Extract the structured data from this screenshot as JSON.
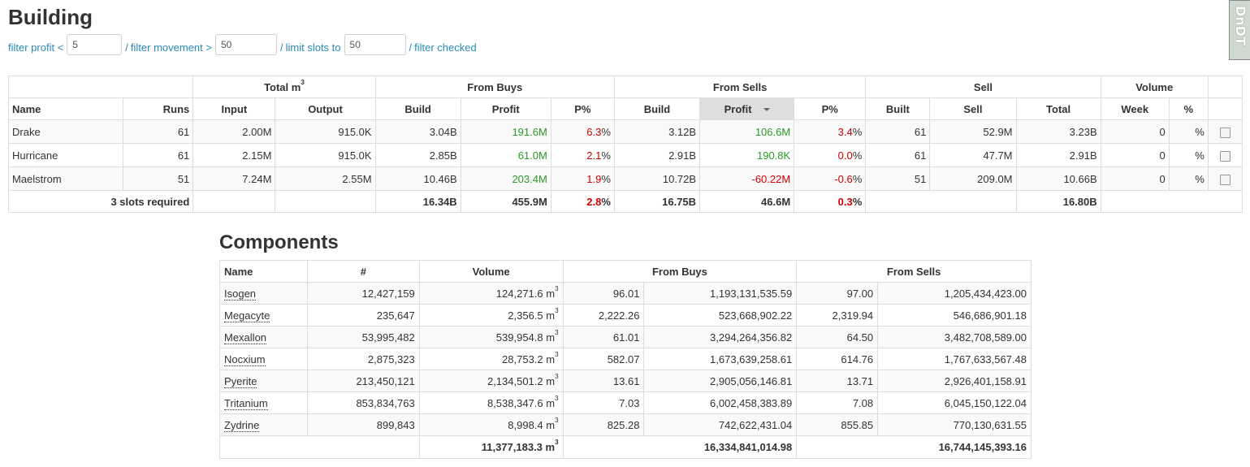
{
  "building": {
    "title": "Building",
    "filters": {
      "profit_label": "filter profit <",
      "profit_value": "5",
      "movement_label": "filter movement >",
      "movement_value": "50",
      "slots_label": "limit slots to",
      "slots_value": "50",
      "checked_label": "filter checked",
      "separator": "/"
    },
    "group_headers": {
      "total_m3": "Total m",
      "total_m3_sup": "3",
      "from_buys": "From Buys",
      "from_sells": "From Sells",
      "sell": "Sell",
      "volume": "Volume"
    },
    "columns": {
      "name": "Name",
      "runs": "Runs",
      "input": "Input",
      "output": "Output",
      "buys_build": "Build",
      "buys_profit": "Profit",
      "buys_pct": "P%",
      "sells_build": "Build",
      "sells_profit": "Profit",
      "sells_pct": "P%",
      "built": "Built",
      "sell": "Sell",
      "total": "Total",
      "week": "Week",
      "vol_pct": "%"
    },
    "rows": [
      {
        "name": "Drake",
        "runs": "61",
        "input": "2.00M",
        "output": "915.0K",
        "buys_build": "3.04B",
        "buys_profit": "191.6M",
        "buys_pct": "6.3",
        "sells_build": "3.12B",
        "sells_profit": "106.6M",
        "sells_pct": "3.4",
        "built": "61",
        "sell": "52.9M",
        "total": "3.23B",
        "week": "0",
        "vol_pct": "%"
      },
      {
        "name": "Hurricane",
        "runs": "61",
        "input": "2.15M",
        "output": "915.0K",
        "buys_build": "2.85B",
        "buys_profit": "61.0M",
        "buys_pct": "2.1",
        "sells_build": "2.91B",
        "sells_profit": "190.8K",
        "sells_pct": "0.0",
        "built": "61",
        "sell": "47.7M",
        "total": "2.91B",
        "week": "0",
        "vol_pct": "%"
      },
      {
        "name": "Maelstrom",
        "runs": "51",
        "input": "7.24M",
        "output": "2.55M",
        "buys_build": "10.46B",
        "buys_profit": "203.4M",
        "buys_pct": "1.9",
        "sells_build": "10.72B",
        "sells_profit": "-60.22M",
        "sells_pct": "-0.6",
        "built": "51",
        "sell": "209.0M",
        "total": "10.66B",
        "week": "0",
        "vol_pct": "%"
      }
    ],
    "pct_suffix": "%",
    "footer": {
      "slots": "3 slots required",
      "buys_build": "16.34B",
      "buys_profit": "455.9M",
      "buys_pct": "2.8",
      "sells_build": "16.75B",
      "sells_profit": "46.6M",
      "sells_pct": "0.3",
      "total": "16.80B"
    }
  },
  "components": {
    "title": "Components",
    "columns": {
      "name": "Name",
      "count": "#",
      "volume": "Volume",
      "from_buys": "From Buys",
      "from_sells": "From Sells"
    },
    "unit": "m",
    "unit_sup": "3",
    "rows": [
      {
        "name": "Isogen",
        "count": "12,427,159",
        "volume": "124,271.6",
        "buy_price": "96.01",
        "buy_total": "1,193,131,535.59",
        "sell_price": "97.00",
        "sell_total": "1,205,434,423.00"
      },
      {
        "name": "Megacyte",
        "count": "235,647",
        "volume": "2,356.5",
        "buy_price": "2,222.26",
        "buy_total": "523,668,902.22",
        "sell_price": "2,319.94",
        "sell_total": "546,686,901.18"
      },
      {
        "name": "Mexallon",
        "count": "53,995,482",
        "volume": "539,954.8",
        "buy_price": "61.01",
        "buy_total": "3,294,264,356.82",
        "sell_price": "64.50",
        "sell_total": "3,482,708,589.00"
      },
      {
        "name": "Nocxium",
        "count": "2,875,323",
        "volume": "28,753.2",
        "buy_price": "582.07",
        "buy_total": "1,673,639,258.61",
        "sell_price": "614.76",
        "sell_total": "1,767,633,567.48"
      },
      {
        "name": "Pyerite",
        "count": "213,450,121",
        "volume": "2,134,501.2",
        "buy_price": "13.61",
        "buy_total": "2,905,056,146.81",
        "sell_price": "13.71",
        "sell_total": "2,926,401,158.91"
      },
      {
        "name": "Tritanium",
        "count": "853,834,763",
        "volume": "8,538,347.6",
        "buy_price": "7.03",
        "buy_total": "6,002,458,383.89",
        "sell_price": "7.08",
        "sell_total": "6,045,150,122.04"
      },
      {
        "name": "Zydrine",
        "count": "899,843",
        "volume": "8,998.4",
        "buy_price": "825.28",
        "buy_total": "742,622,431.04",
        "sell_price": "855.85",
        "sell_total": "770,130,631.55"
      }
    ],
    "footer": {
      "volume": "11,377,183.3",
      "buy_total": "16,334,841,014.98",
      "sell_total": "16,744,145,393.16"
    }
  },
  "corner_widget": {
    "text": "DnDT"
  }
}
